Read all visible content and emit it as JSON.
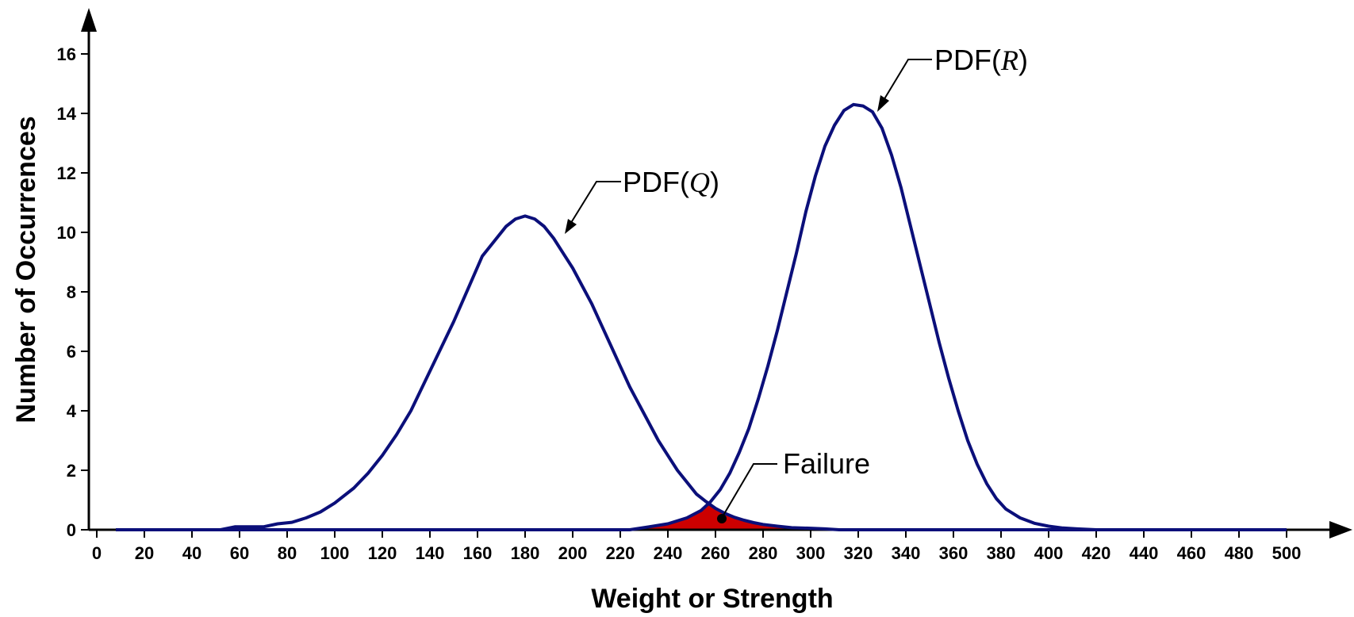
{
  "chart_data": {
    "type": "line",
    "title": "",
    "xlabel": "Weight or Strength",
    "ylabel": "Number of Occurrences",
    "xlim": [
      0,
      500
    ],
    "ylim": [
      0,
      16
    ],
    "x_ticks": [
      0,
      20,
      40,
      60,
      80,
      100,
      120,
      140,
      160,
      180,
      200,
      220,
      240,
      260,
      280,
      300,
      320,
      340,
      360,
      380,
      400,
      420,
      440,
      460,
      480,
      500
    ],
    "y_ticks": [
      0,
      2,
      4,
      6,
      8,
      10,
      12,
      14,
      16
    ],
    "grid": false,
    "line_color": "#0b0f7a",
    "fill_color": "#cc0000",
    "series": [
      {
        "name": "PDF(Q)",
        "x": [
          8,
          20,
          40,
          52,
          58,
          64,
          70,
          76,
          82,
          88,
          94,
          100,
          108,
          114,
          120,
          126,
          132,
          138,
          144,
          150,
          156,
          162,
          168,
          172,
          176,
          180,
          184,
          188,
          192,
          196,
          200,
          204,
          208,
          212,
          216,
          220,
          224,
          228,
          232,
          236,
          240,
          244,
          248,
          252,
          256,
          260,
          264,
          268,
          272,
          276,
          280,
          286,
          292,
          300,
          306,
          312,
          320,
          330,
          340,
          360,
          380,
          400,
          420,
          440,
          460,
          480,
          500
        ],
        "y": [
          0,
          0,
          0,
          0,
          0.1,
          0.1,
          0.1,
          0.2,
          0.25,
          0.4,
          0.6,
          0.9,
          1.4,
          1.9,
          2.5,
          3.2,
          4.0,
          5.0,
          6.0,
          7.0,
          8.1,
          9.2,
          9.8,
          10.2,
          10.45,
          10.55,
          10.45,
          10.2,
          9.8,
          9.3,
          8.8,
          8.2,
          7.6,
          6.9,
          6.2,
          5.5,
          4.8,
          4.2,
          3.6,
          3.0,
          2.5,
          2.0,
          1.6,
          1.2,
          0.95,
          0.72,
          0.55,
          0.42,
          0.32,
          0.24,
          0.18,
          0.12,
          0.07,
          0.05,
          0.03,
          0,
          0,
          0,
          0,
          0,
          0,
          0,
          0,
          0,
          0,
          0,
          0
        ]
      },
      {
        "name": "PDF(R)",
        "x": [
          8,
          100,
          200,
          224,
          232,
          240,
          248,
          254,
          258,
          262,
          266,
          270,
          274,
          278,
          282,
          286,
          290,
          294,
          298,
          302,
          306,
          310,
          314,
          318,
          322,
          326,
          330,
          334,
          338,
          342,
          346,
          350,
          354,
          358,
          362,
          366,
          370,
          374,
          378,
          382,
          388,
          394,
          400,
          406,
          412,
          420,
          440,
          460,
          480,
          500
        ],
        "y": [
          0,
          0,
          0,
          0,
          0.1,
          0.2,
          0.4,
          0.65,
          0.95,
          1.35,
          1.9,
          2.6,
          3.4,
          4.4,
          5.5,
          6.7,
          8.0,
          9.3,
          10.7,
          11.9,
          12.9,
          13.6,
          14.1,
          14.3,
          14.25,
          14.05,
          13.5,
          12.6,
          11.5,
          10.2,
          8.9,
          7.6,
          6.3,
          5.1,
          4.0,
          3.0,
          2.2,
          1.55,
          1.05,
          0.7,
          0.4,
          0.22,
          0.12,
          0.06,
          0.03,
          0,
          0,
          0,
          0,
          0
        ]
      }
    ],
    "annotations": [
      {
        "prefix": "PDF(",
        "var": "Q",
        "suffix": ")"
      },
      {
        "prefix": "PDF(",
        "var": "R",
        "suffix": ")"
      },
      {
        "text": "Failure"
      }
    ]
  }
}
